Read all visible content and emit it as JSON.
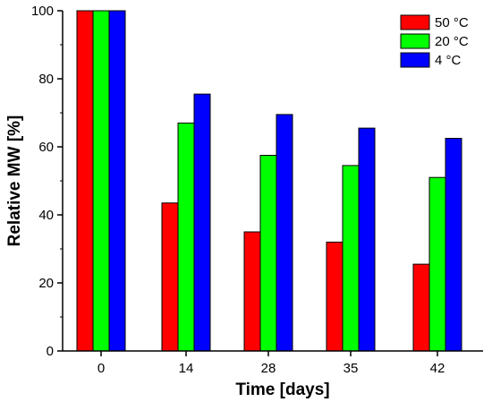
{
  "chart_data": {
    "type": "bar",
    "title": "",
    "xlabel": "Time [days]",
    "ylabel": "Relative MW [%]",
    "categories": [
      "0",
      "14",
      "28",
      "35",
      "42"
    ],
    "ylim": [
      0,
      100
    ],
    "yticks": [
      0,
      20,
      40,
      60,
      80,
      100
    ],
    "grid": false,
    "legend_position": "top-right",
    "series": [
      {
        "name": "50 °C",
        "color": "#ff0000",
        "values": [
          100,
          43.5,
          35,
          32,
          25.5
        ]
      },
      {
        "name": "20 °C",
        "color": "#00ff00",
        "values": [
          100,
          67,
          57.5,
          54.5,
          51
        ]
      },
      {
        "name": "4 °C",
        "color": "#0000ff",
        "values": [
          100,
          75.5,
          69.5,
          65.5,
          62.5
        ]
      }
    ]
  }
}
